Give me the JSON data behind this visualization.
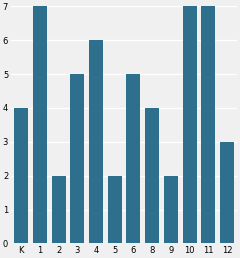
{
  "categories": [
    "K",
    "1",
    "2",
    "3",
    "4",
    "5",
    "6",
    "8",
    "9",
    "10",
    "11",
    "12"
  ],
  "values": [
    4,
    7,
    2,
    5,
    6,
    2,
    5,
    4,
    2,
    7,
    7,
    3
  ],
  "bar_color": "#2e6f8e",
  "ylim": [
    0,
    7
  ],
  "yticks": [
    0,
    1,
    2,
    3,
    4,
    5,
    6,
    7
  ],
  "tick_fontsize": 6,
  "background_color": "#f0f0f0"
}
